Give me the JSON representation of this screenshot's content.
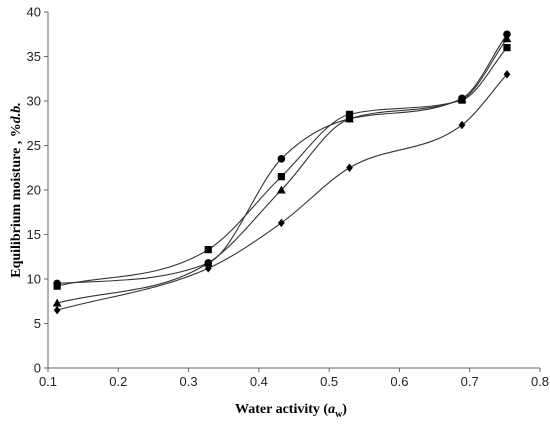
{
  "chart_data": {
    "type": "line",
    "title": "",
    "xlabel": {
      "main": "Water activity (",
      "italic": "a",
      "sub": "w",
      "close": ")"
    },
    "ylabel": {
      "main": "Equilibrium moisture , %",
      "italic": "d.b."
    },
    "xlim": [
      0.1,
      0.8
    ],
    "ylim": [
      0,
      40
    ],
    "xticks": [
      "0.1",
      "0.2",
      "0.3",
      "0.4",
      "0.5",
      "0.6",
      "0.7",
      "0.8"
    ],
    "yticks": [
      "0",
      "5",
      "10",
      "15",
      "20",
      "25",
      "30",
      "35",
      "40"
    ],
    "grid": false,
    "series": [
      {
        "marker": "circle",
        "x": [
          0.113,
          0.328,
          0.432,
          0.529,
          0.689,
          0.753
        ],
        "y": [
          9.5,
          11.8,
          23.5,
          28.0,
          30.3,
          37.5
        ]
      },
      {
        "marker": "square",
        "x": [
          0.113,
          0.328,
          0.432,
          0.529,
          0.689,
          0.753
        ],
        "y": [
          9.2,
          13.3,
          21.5,
          28.5,
          30.1,
          36.0
        ]
      },
      {
        "marker": "triangle",
        "x": [
          0.113,
          0.328,
          0.432,
          0.529,
          0.689,
          0.753
        ],
        "y": [
          7.3,
          11.8,
          20.0,
          28.0,
          30.2,
          37.0
        ]
      },
      {
        "marker": "diamond",
        "x": [
          0.113,
          0.328,
          0.432,
          0.529,
          0.689,
          0.753
        ],
        "y": [
          6.5,
          11.2,
          16.3,
          22.5,
          27.3,
          33.0
        ]
      }
    ]
  }
}
